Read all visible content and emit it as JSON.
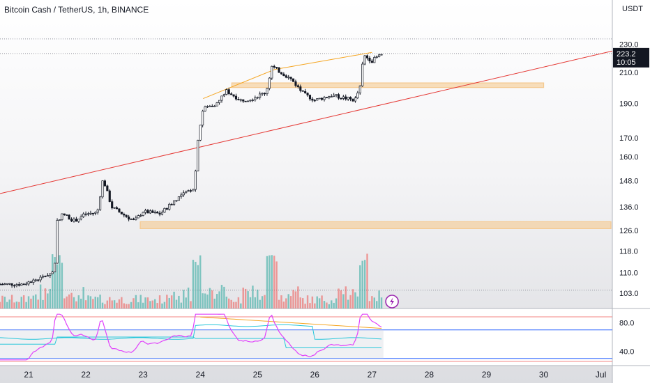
{
  "header": {
    "title": "Bitcoin Cash / TetherUS, 1h, BINANCE",
    "currency": "USDT"
  },
  "colors": {
    "up": "#26a69a",
    "down": "#ef5350",
    "candle": "#131722",
    "trendline": "#e53935",
    "wedge": "#f5a623",
    "zone": "#f5c98f",
    "rsi": "#e040fb",
    "indicator_cyan": "#26c6da",
    "indicator_orange": "#f5a623",
    "band": "#2962ff"
  },
  "price_label": {
    "price": "223.2",
    "countdown": "10:05"
  },
  "chart_data": {
    "type": "candlestick",
    "title": "Bitcoin Cash / TetherUS, 1h, BINANCE",
    "price_axis": {
      "ticks": [
        "230.0",
        "210.0",
        "190.0",
        "170.0",
        "160.0",
        "148.0",
        "136.0",
        "126.0",
        "118.0",
        "110.0",
        "103.0"
      ],
      "scale": "log",
      "range": [
        98,
        248
      ]
    },
    "time_axis": {
      "ticks": [
        "21",
        "22",
        "23",
        "24",
        "25",
        "26",
        "27",
        "28",
        "29",
        "30",
        "Jul"
      ],
      "range_days": [
        20.5,
        31.2
      ]
    },
    "last_price": 223.2,
    "path": [
      [
        20.5,
        106.0
      ],
      [
        20.9,
        106.0
      ],
      [
        21.2,
        108.0
      ],
      [
        21.45,
        110.5
      ],
      [
        21.5,
        130.0
      ],
      [
        21.6,
        133.0
      ],
      [
        21.8,
        130.0
      ],
      [
        22.0,
        133.0
      ],
      [
        22.2,
        133.5
      ],
      [
        22.3,
        149.0
      ],
      [
        22.45,
        136.0
      ],
      [
        22.7,
        132.0
      ],
      [
        22.85,
        130.0
      ],
      [
        23.0,
        134.0
      ],
      [
        23.3,
        133.0
      ],
      [
        23.6,
        140.0
      ],
      [
        23.9,
        145.0
      ],
      [
        23.95,
        168.0
      ],
      [
        24.05,
        187.0
      ],
      [
        24.3,
        190.0
      ],
      [
        24.45,
        198.0
      ],
      [
        24.7,
        192.0
      ],
      [
        24.9,
        193.0
      ],
      [
        25.15,
        197.0
      ],
      [
        25.25,
        214.0
      ],
      [
        25.45,
        209.0
      ],
      [
        25.6,
        205.0
      ],
      [
        25.8,
        196.0
      ],
      [
        26.0,
        192.0
      ],
      [
        26.3,
        195.0
      ],
      [
        26.7,
        192.0
      ],
      [
        26.8,
        201.0
      ],
      [
        26.85,
        222.0
      ],
      [
        27.0,
        218.0
      ],
      [
        27.1,
        221.0
      ],
      [
        27.2,
        223.2
      ]
    ],
    "volume_spikes_days": [
      21.5,
      23.95,
      25.25,
      26.85
    ],
    "annotations": {
      "zones": [
        {
          "x_days": [
            24.55,
            30.0
          ],
          "price": [
            200.0,
            203.0
          ]
        },
        {
          "x_days": [
            22.95,
            31.2
          ],
          "price": [
            126.8,
            129.7
          ]
        }
      ],
      "trendline": {
        "from": [
          20.5,
          142.0
        ],
        "to": [
          31.2,
          225.0
        ]
      },
      "wedge_line": [
        [
          24.05,
          193.0
        ],
        [
          25.3,
          212.0
        ],
        [
          27.0,
          224.0
        ]
      ],
      "dotted_levels": [
        234.0,
        223.2,
        104.0
      ]
    },
    "indicator": {
      "axis_ticks": [
        "80.0",
        "40.0"
      ],
      "range": [
        20,
        100
      ],
      "bands": [
        70,
        30
      ]
    }
  }
}
